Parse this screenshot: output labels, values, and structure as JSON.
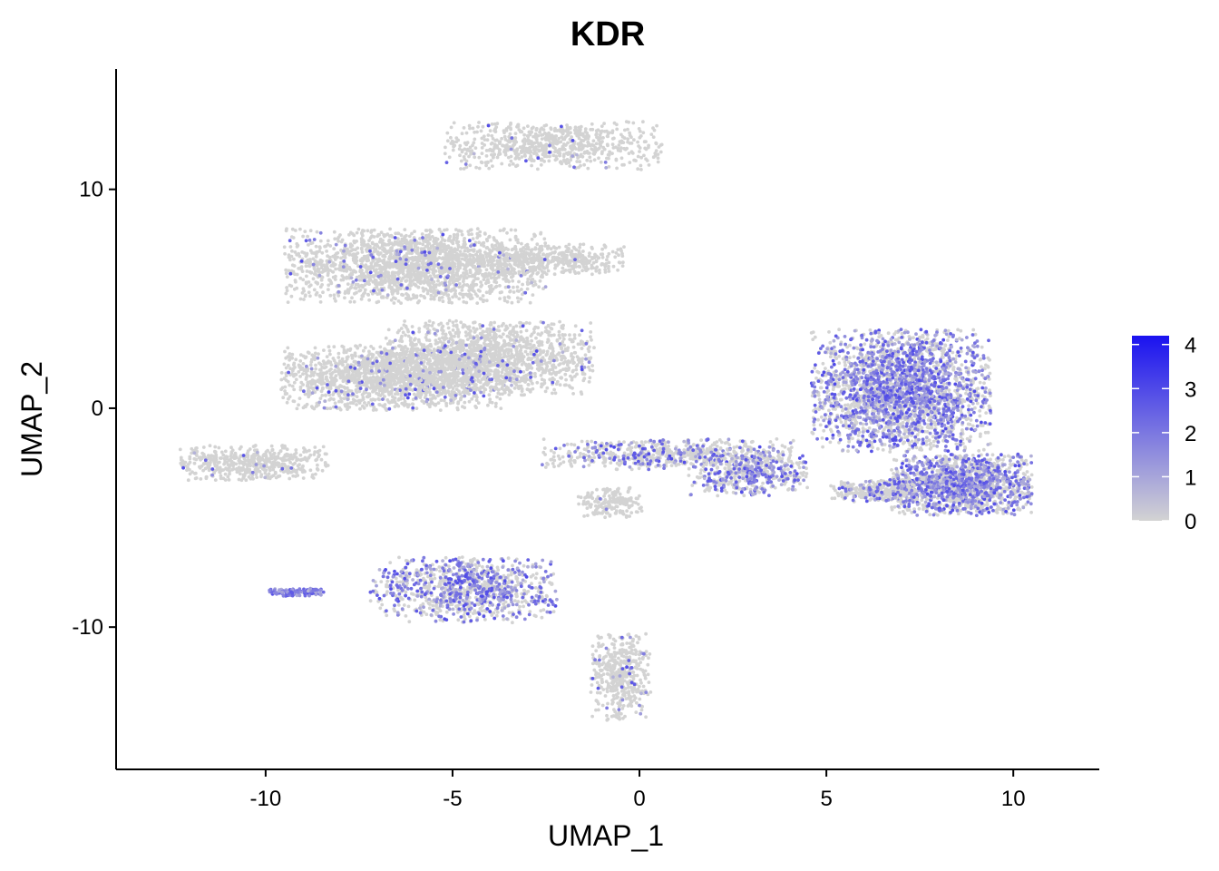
{
  "chart_data": {
    "type": "scatter",
    "title": "KDR",
    "xlabel": "UMAP_1",
    "ylabel": "UMAP_2",
    "xlim": [
      -14,
      12.3
    ],
    "ylim": [
      -16.5,
      15.5
    ],
    "x_ticks": [
      -10,
      -5,
      0,
      5,
      10
    ],
    "x_tick_labels": [
      "-10",
      "-5",
      "0",
      "5",
      "10"
    ],
    "y_ticks": [
      -10,
      0,
      10
    ],
    "y_tick_labels": [
      "-10",
      "0",
      "10"
    ],
    "grid": false,
    "legend_position": "right",
    "color_scale": {
      "low_color": "#d3d3d3",
      "high_color": "#1a12f0",
      "range": [
        0,
        4.2
      ],
      "breaks": [
        0,
        1,
        2,
        3,
        4
      ],
      "break_labels": [
        "0",
        "1",
        "2",
        "3",
        "4"
      ]
    },
    "clusters": [
      {
        "cx": -2.3,
        "cy": 12.0,
        "rx": 2.9,
        "ry": 1.1,
        "n": 700,
        "expr": 0.03
      },
      {
        "cx": -6.0,
        "cy": 6.5,
        "rx": 3.5,
        "ry": 1.7,
        "n": 2000,
        "expr": 0.05
      },
      {
        "cx": -2.5,
        "cy": 6.8,
        "rx": 2.1,
        "ry": 0.7,
        "n": 450,
        "expr": 0.02
      },
      {
        "cx": -6.6,
        "cy": 1.4,
        "rx": 3.0,
        "ry": 1.5,
        "n": 1600,
        "expr": 0.05
      },
      {
        "cx": -4.0,
        "cy": 2.3,
        "rx": 2.8,
        "ry": 1.7,
        "n": 1500,
        "expr": 0.06
      },
      {
        "cx": 0.8,
        "cy": -2.1,
        "rx": 3.4,
        "ry": 0.7,
        "n": 650,
        "expr": 0.25
      },
      {
        "cx": 2.9,
        "cy": -3.0,
        "rx": 1.6,
        "ry": 1.0,
        "n": 500,
        "expr": 0.45
      },
      {
        "cx": -10.3,
        "cy": -2.5,
        "rx": 2.0,
        "ry": 0.8,
        "n": 500,
        "expr": 0.02
      },
      {
        "cx": -0.8,
        "cy": -4.3,
        "rx": 0.9,
        "ry": 0.7,
        "n": 180,
        "expr": 0.03
      },
      {
        "cx": -4.7,
        "cy": -8.3,
        "rx": 2.5,
        "ry": 1.5,
        "n": 1000,
        "expr": 0.45
      },
      {
        "cx": -9.2,
        "cy": -8.4,
        "rx": 0.8,
        "ry": 0.18,
        "n": 140,
        "expr": 0.98
      },
      {
        "cx": -0.5,
        "cy": -12.3,
        "rx": 0.8,
        "ry": 2.0,
        "n": 450,
        "expr": 0.05
      },
      {
        "cx": 7.0,
        "cy": 0.8,
        "rx": 2.4,
        "ry": 2.8,
        "n": 2600,
        "expr": 0.5
      },
      {
        "cx": 8.6,
        "cy": -3.5,
        "rx": 1.9,
        "ry": 1.4,
        "n": 1500,
        "expr": 0.45
      },
      {
        "cx": 6.3,
        "cy": -3.8,
        "rx": 1.2,
        "ry": 0.5,
        "n": 300,
        "expr": 0.3
      }
    ]
  }
}
